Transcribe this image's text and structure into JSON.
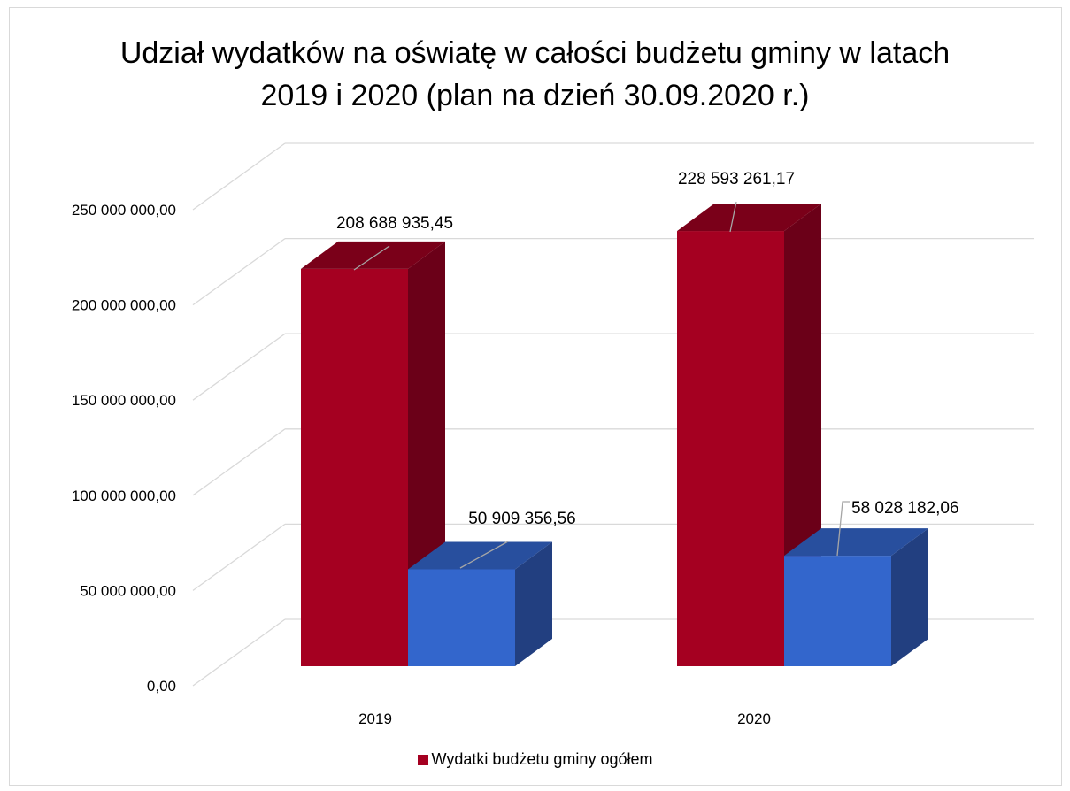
{
  "chart_data": {
    "type": "bar",
    "title_lines": [
      "Udział wydatków na oświatę w całości budżetu gminy w latach",
      "2019 i 2020 (plan na dzień 30.09.2020 r.)"
    ],
    "categories": [
      "2019",
      "2020"
    ],
    "series": [
      {
        "name": "Wydatki budżetu gminy ogółem",
        "values": [
          208688935.45,
          228593261.17
        ],
        "labels": [
          "208 688 935,45",
          "228 593 261,17"
        ],
        "color": "#a50021",
        "side_color": "#6b0018",
        "top_color": "#7a0019"
      },
      {
        "values": [
          50909356.56,
          58028182.06
        ],
        "labels": [
          "50 909 356,56",
          "58 028 182,06"
        ],
        "color": "#3366cc",
        "side_color": "#223f80",
        "top_color": "#284f9e"
      }
    ],
    "yticks": [
      {
        "value": 0,
        "label": "0,00"
      },
      {
        "value": 50000000,
        "label": "50 000 000,00"
      },
      {
        "value": 100000000,
        "label": "100 000 000,00"
      },
      {
        "value": 150000000,
        "label": "150 000 000,00"
      },
      {
        "value": 200000000,
        "label": "200 000 000,00"
      },
      {
        "value": 250000000,
        "label": "250 000 000,00"
      }
    ],
    "ylim": [
      0,
      250000000
    ],
    "grid": true,
    "legend": "bottom"
  }
}
